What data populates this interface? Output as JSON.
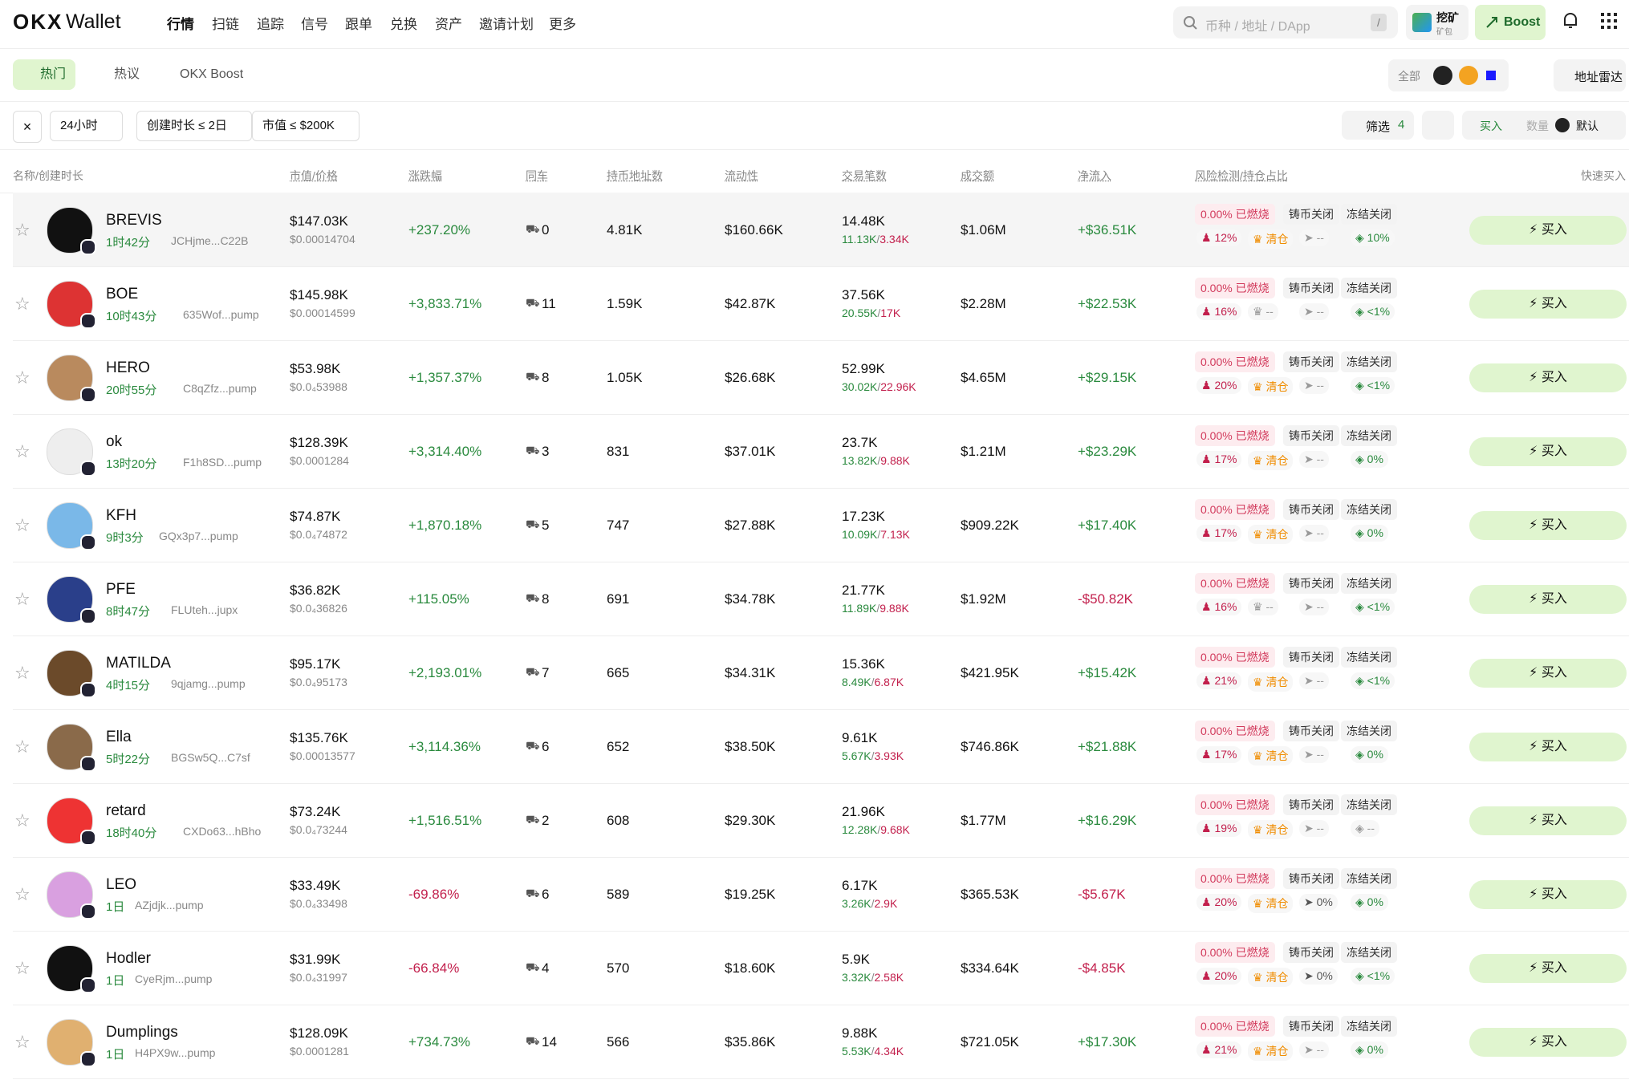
{
  "nav": {
    "logo": "OKX",
    "brand": "Wallet",
    "items": [
      "行情",
      "扫链",
      "追踪",
      "信号",
      "跟单",
      "兑换",
      "资产",
      "邀请计划",
      "更多"
    ],
    "search_placeholder": "币种 / 地址 / DApp",
    "search_key": "/",
    "mining": "挖矿",
    "mining_sub": "矿包",
    "boost": "Boost"
  },
  "tabs": {
    "items": [
      "热门",
      "热议",
      "OKX Boost"
    ],
    "chain_all": "全部",
    "radar": "地址雷达"
  },
  "filters": {
    "chips": [
      "24小时",
      "创建时长 ≤ 2日",
      "市值 ≤ $200K"
    ],
    "screen": "筛选",
    "screen_count": "4",
    "buy": "买入",
    "amount": "数量",
    "preset": "默认"
  },
  "table": {
    "columns": [
      "名称/创建时长",
      "市值/价格",
      "涨跌幅",
      "同车",
      "持币地址数",
      "流动性",
      "交易笔数",
      "成交额",
      "净流入",
      "风险检测/持仓占比",
      "快速买入"
    ],
    "risk_labels": {
      "burned": "已燃烧",
      "mint": "铸币关闭",
      "freeze": "冻结关闭"
    },
    "buy_label": "买入",
    "rows": [
      {
        "name": "BREVIS",
        "age": "1时42分",
        "address": "JCHjme...C22B",
        "market_cap": "$147.03K",
        "price": "$0.00014704",
        "change": "+237.20%",
        "cotrade": "0",
        "holders": "4.81K",
        "liquidity": "$160.66K",
        "txns": "14.48K",
        "buys": "11.13K",
        "sells": "3.34K",
        "volume": "$1.06M",
        "net_inflow": "+$36.51K",
        "burned": "0.00%",
        "top10": "12%",
        "dev": "清仓",
        "sniper": "--",
        "insider": "10%"
      },
      {
        "name": "BOE",
        "age": "10时43分",
        "address": "635Wof...pump",
        "market_cap": "$145.98K",
        "price": "$0.00014599",
        "change": "+3,833.71%",
        "cotrade": "11",
        "holders": "1.59K",
        "liquidity": "$42.87K",
        "txns": "37.56K",
        "buys": "20.55K",
        "sells": "17K",
        "volume": "$2.28M",
        "net_inflow": "+$22.53K",
        "burned": "0.00%",
        "top10": "16%",
        "dev": "--",
        "sniper": "--",
        "insider": "<1%"
      },
      {
        "name": "HERO",
        "age": "20时55分",
        "address": "C8qZfz...pump",
        "market_cap": "$53.98K",
        "price": "$0.0₄53988",
        "change": "+1,357.37%",
        "cotrade": "8",
        "holders": "1.05K",
        "liquidity": "$26.68K",
        "txns": "52.99K",
        "buys": "30.02K",
        "sells": "22.96K",
        "volume": "$4.65M",
        "net_inflow": "+$29.15K",
        "burned": "0.00%",
        "top10": "20%",
        "dev": "清仓",
        "sniper": "--",
        "insider": "<1%"
      },
      {
        "name": "ok",
        "age": "13时20分",
        "address": "F1h8SD...pump",
        "market_cap": "$128.39K",
        "price": "$0.0001284",
        "change": "+3,314.40%",
        "cotrade": "3",
        "holders": "831",
        "liquidity": "$37.01K",
        "txns": "23.7K",
        "buys": "13.82K",
        "sells": "9.88K",
        "volume": "$1.21M",
        "net_inflow": "+$23.29K",
        "burned": "0.00%",
        "top10": "17%",
        "dev": "清仓",
        "sniper": "--",
        "insider": "0%"
      },
      {
        "name": "KFH",
        "age": "9时3分",
        "address": "GQx3p7...pump",
        "market_cap": "$74.87K",
        "price": "$0.0₄74872",
        "change": "+1,870.18%",
        "cotrade": "5",
        "holders": "747",
        "liquidity": "$27.88K",
        "txns": "17.23K",
        "buys": "10.09K",
        "sells": "7.13K",
        "volume": "$909.22K",
        "net_inflow": "+$17.40K",
        "burned": "0.00%",
        "top10": "17%",
        "dev": "清仓",
        "sniper": "--",
        "insider": "0%"
      },
      {
        "name": "PFE",
        "age": "8时47分",
        "address": "FLUteh...jupx",
        "market_cap": "$36.82K",
        "price": "$0.0₄36826",
        "change": "+115.05%",
        "cotrade": "8",
        "holders": "691",
        "liquidity": "$34.78K",
        "txns": "21.77K",
        "buys": "11.89K",
        "sells": "9.88K",
        "volume": "$1.92M",
        "net_inflow": "-$50.82K",
        "burned": "0.00%",
        "top10": "16%",
        "dev": "--",
        "sniper": "--",
        "insider": "<1%"
      },
      {
        "name": "MATILDA",
        "age": "4时15分",
        "address": "9qjamg...pump",
        "market_cap": "$95.17K",
        "price": "$0.0₄95173",
        "change": "+2,193.01%",
        "cotrade": "7",
        "holders": "665",
        "liquidity": "$34.31K",
        "txns": "15.36K",
        "buys": "8.49K",
        "sells": "6.87K",
        "volume": "$421.95K",
        "net_inflow": "+$15.42K",
        "burned": "0.00%",
        "top10": "21%",
        "dev": "清仓",
        "sniper": "--",
        "insider": "<1%"
      },
      {
        "name": "Ella",
        "age": "5时22分",
        "address": "BGSw5Q...C7sf",
        "market_cap": "$135.76K",
        "price": "$0.00013577",
        "change": "+3,114.36%",
        "cotrade": "6",
        "holders": "652",
        "liquidity": "$38.50K",
        "txns": "9.61K",
        "buys": "5.67K",
        "sells": "3.93K",
        "volume": "$746.86K",
        "net_inflow": "+$21.88K",
        "burned": "0.00%",
        "top10": "17%",
        "dev": "清仓",
        "sniper": "--",
        "insider": "0%"
      },
      {
        "name": "retard",
        "age": "18时40分",
        "address": "CXDo63...hBho",
        "market_cap": "$73.24K",
        "price": "$0.0₄73244",
        "change": "+1,516.51%",
        "cotrade": "2",
        "holders": "608",
        "liquidity": "$29.30K",
        "txns": "21.96K",
        "buys": "12.28K",
        "sells": "9.68K",
        "volume": "$1.77M",
        "net_inflow": "+$16.29K",
        "burned": "0.00%",
        "top10": "19%",
        "dev": "清仓",
        "sniper": "--",
        "insider": "--"
      },
      {
        "name": "LEO",
        "age": "1日",
        "address": "AZjdjk...pump",
        "market_cap": "$33.49K",
        "price": "$0.0₄33498",
        "change": "-69.86%",
        "cotrade": "6",
        "holders": "589",
        "liquidity": "$19.25K",
        "txns": "6.17K",
        "buys": "3.26K",
        "sells": "2.9K",
        "volume": "$365.53K",
        "net_inflow": "-$5.67K",
        "burned": "0.00%",
        "top10": "20%",
        "dev": "清仓",
        "sniper": "0%",
        "insider": "0%"
      },
      {
        "name": "Hodler",
        "age": "1日",
        "address": "CyeRjm...pump",
        "market_cap": "$31.99K",
        "price": "$0.0₄31997",
        "change": "-66.84%",
        "cotrade": "4",
        "holders": "570",
        "liquidity": "$18.60K",
        "txns": "5.9K",
        "buys": "3.32K",
        "sells": "2.58K",
        "volume": "$334.64K",
        "net_inflow": "-$4.85K",
        "burned": "0.00%",
        "top10": "20%",
        "dev": "清仓",
        "sniper": "0%",
        "insider": "<1%"
      },
      {
        "name": "Dumplings",
        "age": "1日",
        "address": "H4PX9w...pump",
        "market_cap": "$128.09K",
        "price": "$0.0001281",
        "change": "+734.73%",
        "cotrade": "14",
        "holders": "566",
        "liquidity": "$35.86K",
        "txns": "9.88K",
        "buys": "5.53K",
        "sells": "4.34K",
        "volume": "$721.05K",
        "net_inflow": "+$17.30K",
        "burned": "0.00%",
        "top10": "21%",
        "dev": "清仓",
        "sniper": "--",
        "insider": "0%"
      }
    ]
  }
}
